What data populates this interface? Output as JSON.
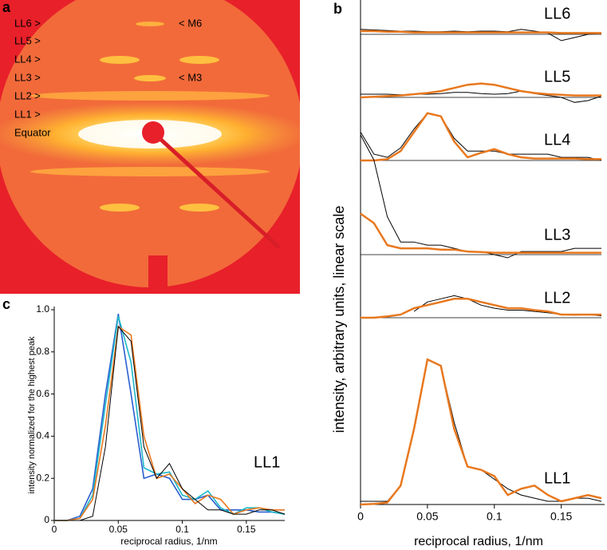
{
  "panel_a": {
    "panel_label": "a",
    "left_labels": [
      "LL6 >",
      "LL5 >",
      "LL4 >",
      "LL3 >",
      "LL2 >",
      "LL1 >",
      "Equator"
    ],
    "right_labels": [
      "< M6",
      "< M3"
    ]
  },
  "chart_data": [
    {
      "type": "stacked-profiles",
      "panel_label": "b",
      "x_label": "reciprocal radius, 1/nm",
      "y_label": "intensity, arbitrary units, linear scale",
      "x": [
        0,
        0.01,
        0.02,
        0.03,
        0.04,
        0.05,
        0.06,
        0.07,
        0.08,
        0.09,
        0.1,
        0.11,
        0.12,
        0.13,
        0.14,
        0.15,
        0.16,
        0.17,
        0.18
      ],
      "xlim": [
        0,
        0.18
      ],
      "xticks": [
        0,
        0.05,
        0.1,
        0.15
      ],
      "ylim": [
        0,
        8
      ],
      "rows": [
        {
          "label": "LL6",
          "series": [
            {
              "color": "#000000",
              "values": [
                0.08,
                0.07,
                0.06,
                0.05,
                0.05,
                0.04,
                0.04,
                0.05,
                0.04,
                0.05,
                0.05,
                0.04,
                0.08,
                0.05,
                0.02,
                -0.1,
                -0.05,
                0,
                0.02
              ]
            },
            {
              "color": "#e8781e",
              "values": [
                0.05,
                0.05,
                0.04,
                0.04,
                0.03,
                0.03,
                0.03,
                0.03,
                0.03,
                0.03,
                0.03,
                0.03,
                0.03,
                0.03,
                0.03,
                0.02,
                0.02,
                0.02,
                0.02
              ]
            }
          ]
        },
        {
          "label": "LL5",
          "series": [
            {
              "color": "#000000",
              "values": [
                0.05,
                0.05,
                0.05,
                0.04,
                0.05,
                0.05,
                0.06,
                0.08,
                0.08,
                0.06,
                0.05,
                0.06,
                0.1,
                0.06,
                0.03,
                0,
                -0.08,
                -0.05,
                0.02
              ]
            },
            {
              "color": "#e8781e",
              "values": [
                0,
                0.01,
                0.02,
                0.03,
                0.05,
                0.07,
                0.1,
                0.15,
                0.2,
                0.22,
                0.2,
                0.15,
                0.1,
                0.07,
                0.05,
                0.04,
                0.03,
                0.03,
                0.03
              ]
            }
          ]
        },
        {
          "label": "LL4",
          "series": [
            {
              "color": "#000000",
              "values": [
                0.45,
                0.1,
                0.05,
                0.2,
                0.5,
                0.75,
                0.7,
                0.35,
                0.15,
                0.15,
                0.15,
                0.1,
                0.1,
                0.1,
                0.1,
                0.05,
                0.05,
                0.05,
                0
              ]
            },
            {
              "color": "#e8781e",
              "values": [
                0,
                0,
                0.02,
                0.15,
                0.45,
                0.75,
                0.7,
                0.3,
                0.05,
                0.12,
                0.18,
                0.1,
                0.05,
                0.03,
                0.03,
                0.03,
                0.03,
                0.02,
                0.02
              ]
            }
          ]
        },
        {
          "label": "LL3",
          "series": [
            {
              "color": "#000000",
              "values": [
                1.9,
                1.5,
                0.6,
                0.2,
                0.2,
                0.15,
                0.15,
                0.1,
                0.05,
                0.05,
                0,
                -0.05,
                0.05,
                0.05,
                0.05,
                0.05,
                0.1,
                0.1,
                0.1
              ]
            },
            {
              "color": "#e8781e",
              "values": [
                0.65,
                0.5,
                0.15,
                0.1,
                0.1,
                0.1,
                0.08,
                0.08,
                0.05,
                0.04,
                0.03,
                0.03,
                0.03,
                0.03,
                0.03,
                0.03,
                0.03,
                0.03,
                0.03
              ]
            }
          ]
        },
        {
          "label": "LL2",
          "series": [
            {
              "color": "#000000",
              "values": [
                null,
                null,
                null,
                null,
                0.1,
                0.25,
                0.3,
                0.35,
                0.3,
                0.2,
                0.15,
                0.12,
                0.12,
                0.1,
                0.08,
                0.05,
                0.04,
                0.05,
                0.03
              ]
            },
            {
              "color": "#e8781e",
              "values": [
                0,
                0,
                0.02,
                0.05,
                0.15,
                0.2,
                0.25,
                0.3,
                0.3,
                0.25,
                0.2,
                0.15,
                0.15,
                0.12,
                0.1,
                0.05,
                0.05,
                0.05,
                0.05
              ]
            }
          ]
        },
        {
          "label": "LL1",
          "series": [
            {
              "color": "#000000",
              "values": [
                0.05,
                0.05,
                0.05,
                0.3,
                1.2,
                2.3,
                2.2,
                1.3,
                0.6,
                0.55,
                0.4,
                0.25,
                0.15,
                0.1,
                0.05,
                0.05,
                0.1,
                0.1,
                0.05
              ]
            },
            {
              "color": "#e8781e",
              "values": [
                0,
                0.01,
                0.03,
                0.3,
                1.2,
                2.3,
                2.2,
                1.2,
                0.6,
                0.55,
                0.45,
                0.15,
                0.25,
                0.3,
                0.15,
                0.05,
                0.1,
                0.15,
                0.1
              ]
            }
          ]
        }
      ]
    },
    {
      "type": "line",
      "panel_label": "c",
      "x_label": "reciprocal radius, 1/nm",
      "y_label": "intensity normalized for the highest peak",
      "annotation": "LL1",
      "x": [
        0,
        0.01,
        0.02,
        0.03,
        0.04,
        0.05,
        0.06,
        0.07,
        0.08,
        0.09,
        0.1,
        0.11,
        0.12,
        0.13,
        0.14,
        0.15,
        0.16,
        0.17,
        0.18
      ],
      "xlim": [
        0,
        0.18
      ],
      "xticks": [
        0,
        0.05,
        0.1,
        0.15
      ],
      "ylim": [
        0,
        1
      ],
      "yticks": [
        0,
        0.2,
        0.4,
        0.6,
        0.8,
        {
          "value": 1,
          "label": "1.0"
        }
      ],
      "series": [
        {
          "color": "#2a5fd0",
          "values": [
            0,
            0,
            0.02,
            0.15,
            0.6,
            0.98,
            0.6,
            0.2,
            0.22,
            0.2,
            0.1,
            0.1,
            0.12,
            0.05,
            0.05,
            0.05,
            0.04,
            0.04,
            0.03
          ]
        },
        {
          "color": "#1fb8c8",
          "values": [
            0,
            0,
            0.01,
            0.12,
            0.55,
            0.97,
            0.75,
            0.25,
            0.22,
            0.23,
            0.12,
            0.1,
            0.14,
            0.06,
            0.03,
            0.06,
            0.06,
            0.04,
            0.03
          ]
        },
        {
          "color": "#e8781e",
          "values": [
            0,
            0,
            0.01,
            0.1,
            0.45,
            0.92,
            0.88,
            0.4,
            0.2,
            0.22,
            0.15,
            0.08,
            0.12,
            0.1,
            0.03,
            0.05,
            0.06,
            0.05,
            0.05
          ]
        },
        {
          "color": "#000000",
          "values": [
            0,
            0,
            0,
            0.02,
            0.35,
            0.92,
            0.85,
            0.35,
            0.2,
            0.27,
            0.15,
            0.1,
            0.05,
            0.05,
            0.03,
            0.03,
            0.05,
            0.05,
            0.03
          ]
        }
      ]
    }
  ]
}
